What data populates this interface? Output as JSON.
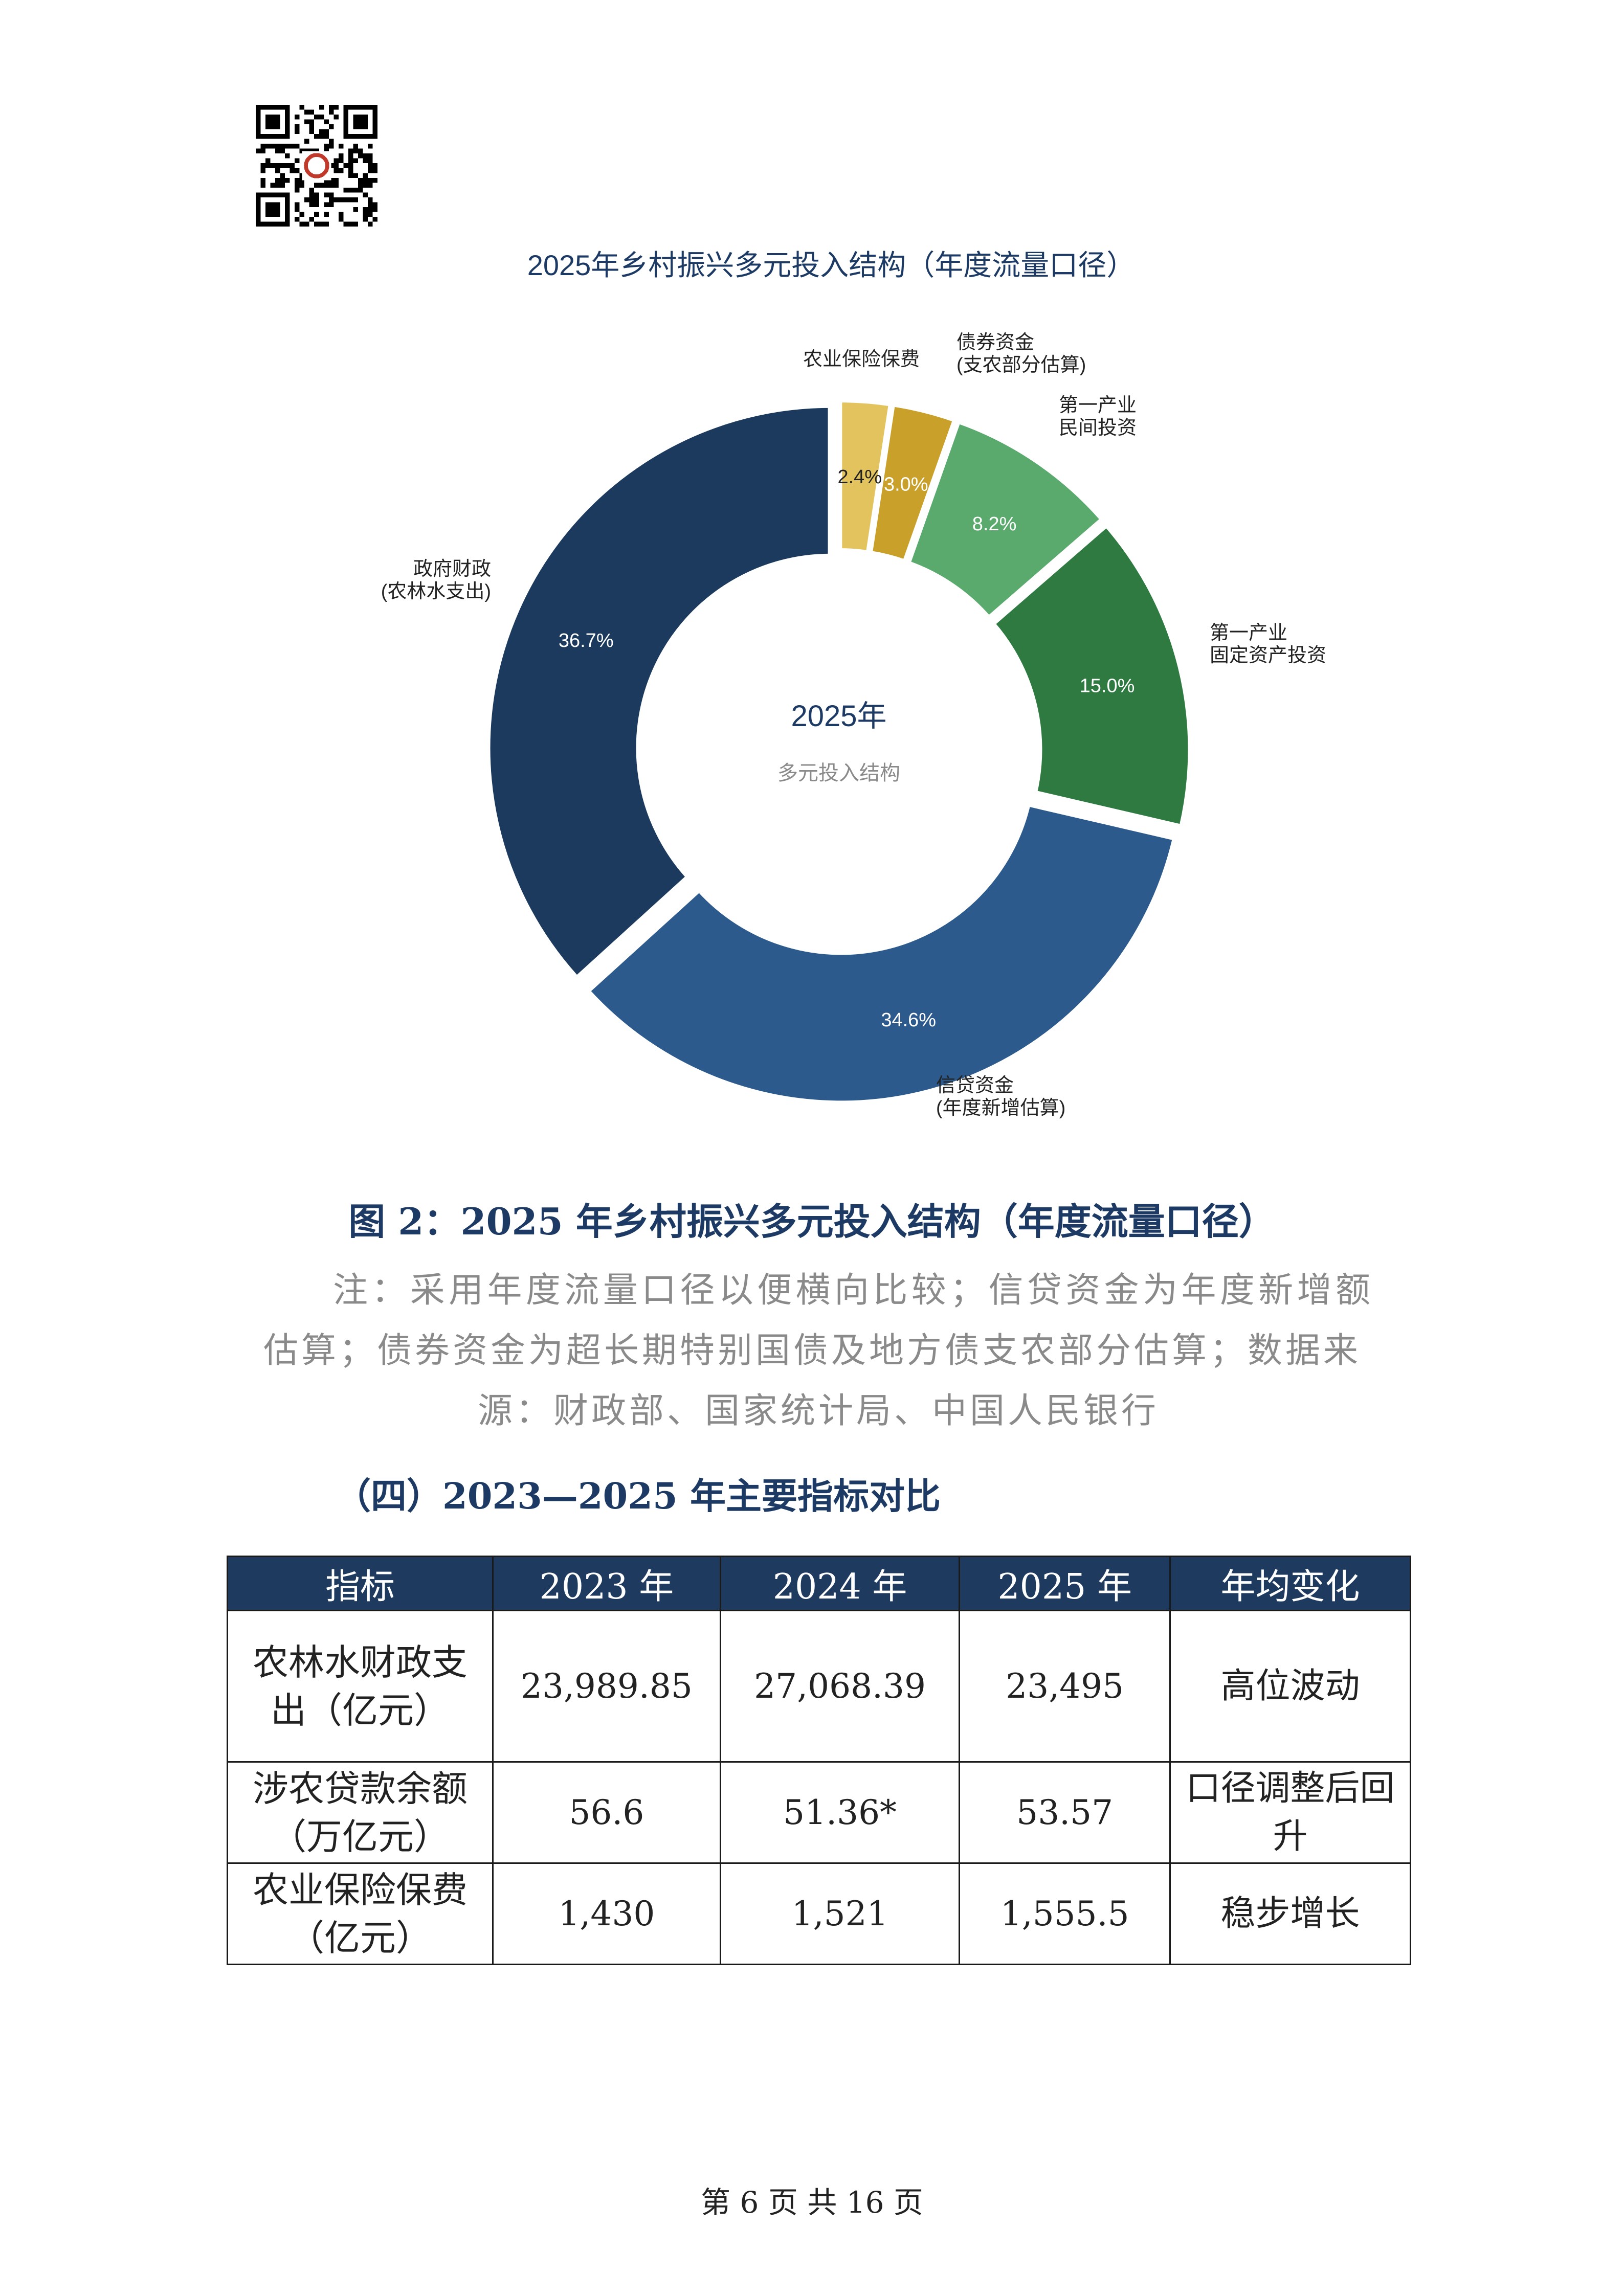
{
  "qr_code": {
    "icon": "qr-code"
  },
  "chart_data": {
    "type": "pie",
    "style": "donut",
    "title": "2025年乡村振兴多元投入结构（年度流量口径）",
    "center_title": "2025年",
    "center_subtitle": "多元投入结构",
    "slices": [
      {
        "name": "农业保险保费",
        "label_lines": [
          "农业保险保费"
        ],
        "value": 2.4,
        "display": "2.4%",
        "color": "#e3c35e"
      },
      {
        "name": "债券资金(支农部分估算)",
        "label_lines": [
          "债券资金",
          "(支农部分估算)"
        ],
        "value": 3.0,
        "display": "3.0%",
        "color": "#c9a12a"
      },
      {
        "name": "第一产业民间投资",
        "label_lines": [
          "第一产业",
          "民间投资"
        ],
        "value": 8.2,
        "display": "8.2%",
        "color": "#5aaa6e"
      },
      {
        "name": "第一产业固定资产投资",
        "label_lines": [
          "第一产业",
          "固定资产投资"
        ],
        "value": 15.0,
        "display": "15.0%",
        "color": "#2e7a40"
      },
      {
        "name": "信贷资金(年度新增估算)",
        "label_lines": [
          "信贷资金",
          "(年度新增估算)"
        ],
        "value": 34.6,
        "display": "34.6%",
        "color": "#2d5a8c"
      },
      {
        "name": "政府财政(农林水支出)",
        "label_lines": [
          "政府财政",
          "(农林水支出)"
        ],
        "value": 36.7,
        "display": "36.7%",
        "color": "#1c3a5e"
      }
    ]
  },
  "figure_caption": "图 2：2025 年乡村振兴多元投入结构（年度流量口径）",
  "note": {
    "main": "注：采用年度流量口径以便横向比较；信贷资金为年度新增额估算；债券资金为超长期特别国债及地方债支农部分估算；数据来",
    "last": "源：财政部、国家统计局、中国人民银行"
  },
  "section_title": "（四）2023—2025 年主要指标对比",
  "table": {
    "headers": [
      "指标",
      "2023 年",
      "2024 年",
      "2025 年",
      "年均变化"
    ],
    "rows": [
      {
        "indicator": "农林水财政支出（亿元）",
        "y2023": "23,989.85",
        "y2024": "27,068.39",
        "y2025": "23,495",
        "change": "高位波动"
      },
      {
        "indicator": "涉农贷款余额（万亿元）",
        "y2023": "56.6",
        "y2024": "51.36*",
        "y2025": "53.57",
        "change": "口径调整后回升"
      },
      {
        "indicator": "农业保险保费（亿元）",
        "y2023": "1,430",
        "y2024": "1,521",
        "y2025": "1,555.5",
        "change": "稳步增长"
      }
    ]
  },
  "footer": "第 6 页 共 16 页"
}
